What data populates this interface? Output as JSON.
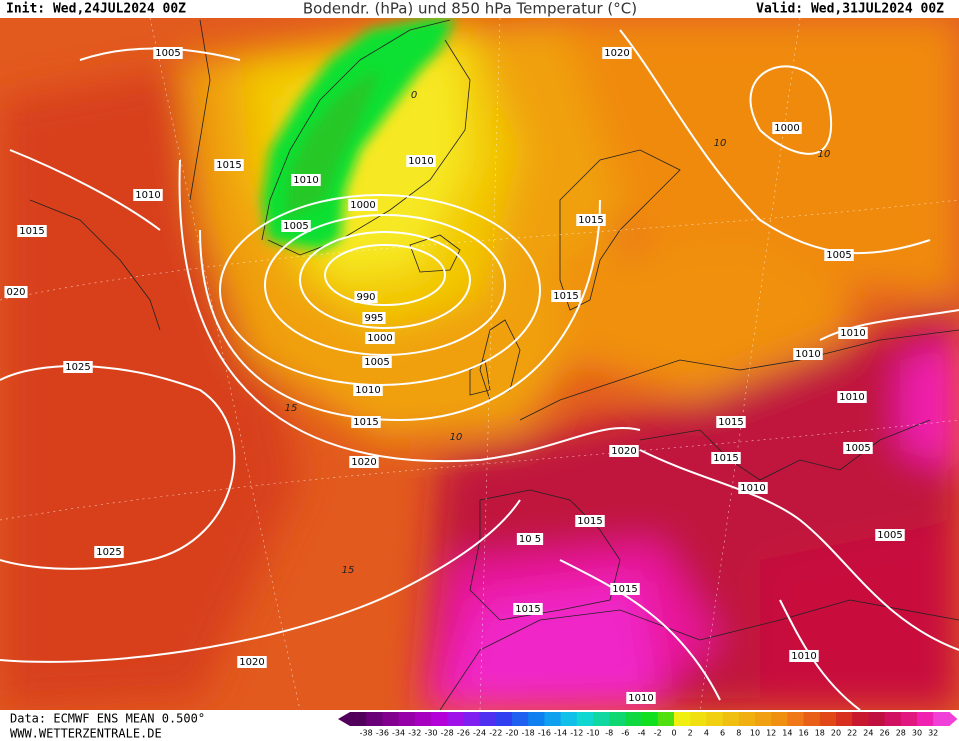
{
  "header": {
    "init": "Init: Wed,24JUL2024 00Z",
    "title": "Bodendr. (hPa) und 850 hPa Temperatur (°C)",
    "valid": "Valid: Wed,31JUL2024 00Z"
  },
  "isobar_labels": [
    "1005",
    "1020",
    "1000",
    "1015",
    "1010",
    "1010",
    "1010",
    "1000",
    "1015",
    "1005",
    "1015",
    "1005",
    "020",
    "990",
    "1015",
    "995",
    "1010",
    "1000",
    "1010",
    "1005",
    "1025",
    "1010",
    "1010",
    "1015",
    "1015",
    "1020",
    "1005",
    "1015",
    "1020",
    "1010",
    "1015",
    "1005",
    "10 5",
    "1025",
    "1015",
    "1015",
    "1010",
    "1020",
    "1010"
  ],
  "temperature_labels": [
    "10",
    "10",
    "15",
    "10",
    "15",
    "0"
  ],
  "footer": {
    "data": "Data: ECMWF ENS MEAN 0.500°",
    "site": "WWW.WETTERZENTRALE.DE"
  },
  "colorbar": {
    "labels": [
      "-38",
      "-36",
      "-34",
      "-32",
      "-30",
      "-28",
      "-26",
      "-24",
      "-22",
      "-20",
      "-18",
      "-16",
      "-14",
      "-12",
      "-10",
      "-8",
      "-6",
      "-4",
      "-2",
      "0",
      "2",
      "4",
      "6",
      "8",
      "10",
      "12",
      "14",
      "16",
      "18",
      "20",
      "22",
      "24",
      "26",
      "28",
      "30",
      "32"
    ]
  }
}
